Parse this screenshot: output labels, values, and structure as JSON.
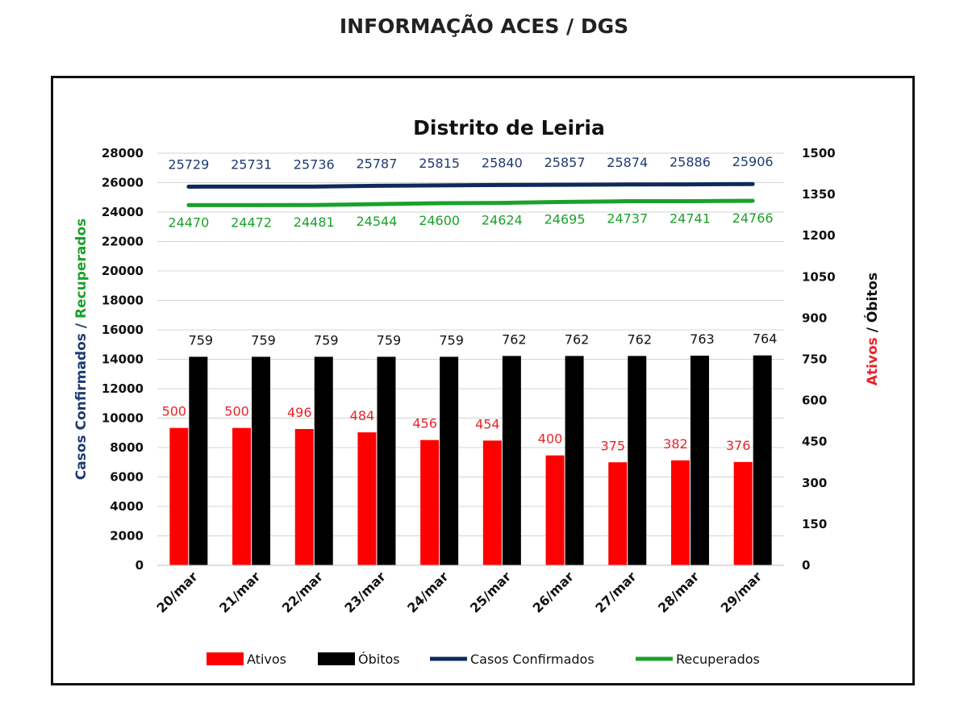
{
  "header": {
    "title": "INFORMAÇÃO ACES / DGS"
  },
  "chart_data": {
    "type": "bar",
    "title": "Distrito de Leiria",
    "categories": [
      "20/mar",
      "21/mar",
      "22/mar",
      "23/mar",
      "24/mar",
      "25/mar",
      "26/mar",
      "27/mar",
      "28/mar",
      "29/mar"
    ],
    "series": [
      {
        "name": "Ativos",
        "type": "bar",
        "axis": "right",
        "color": "#ff0000",
        "label_color": "#e8242a",
        "values": [
          500,
          500,
          496,
          484,
          456,
          454,
          400,
          375,
          382,
          376
        ]
      },
      {
        "name": "Óbitos",
        "type": "bar",
        "axis": "right",
        "color": "#000000",
        "label_color": "#111111",
        "values": [
          759,
          759,
          759,
          759,
          759,
          762,
          762,
          762,
          763,
          764
        ]
      },
      {
        "name": "Casos Confirmados",
        "type": "line",
        "axis": "left",
        "color": "#0e2a5c",
        "label_color": "#1f3b73",
        "values": [
          25729,
          25731,
          25736,
          25787,
          25815,
          25840,
          25857,
          25874,
          25886,
          25906
        ]
      },
      {
        "name": "Recuperados",
        "type": "line",
        "axis": "left",
        "color": "#1ba12a",
        "label_color": "#1ba12a",
        "values": [
          24470,
          24472,
          24481,
          24544,
          24600,
          24624,
          24695,
          24737,
          24741,
          24766
        ]
      }
    ],
    "y_left": {
      "label_parts": [
        {
          "text": "Casos Confirmados / ",
          "color": "#1f3b73"
        },
        {
          "text": "Recuperados",
          "color": "#1ba12a"
        }
      ],
      "ylim": [
        0,
        28000
      ],
      "ticks": [
        "0",
        "2000",
        "4000",
        "6000",
        "8000",
        "10000",
        "12000",
        "14000",
        "16000",
        "18000",
        "20000",
        "22000",
        "24000",
        "26000",
        "28000"
      ]
    },
    "y_right": {
      "label_parts": [
        {
          "text": "Ativos",
          "color": "#e8242a"
        },
        {
          "text": " / Óbitos",
          "color": "#111111"
        }
      ],
      "ylim": [
        0,
        1500
      ],
      "ticks": [
        "0",
        "150",
        "300",
        "450",
        "600",
        "750",
        "900",
        "1050",
        "1200",
        "1350",
        "1500"
      ]
    },
    "grid": true,
    "legend": "bottom",
    "legend_items": [
      {
        "label": "Ativos",
        "marker": "bar",
        "color": "#ff0000"
      },
      {
        "label": "Óbitos",
        "marker": "bar",
        "color": "#000000"
      },
      {
        "label": "Casos Confirmados",
        "marker": "line",
        "color": "#0e2a5c"
      },
      {
        "label": "Recuperados",
        "marker": "line",
        "color": "#1ba12a"
      }
    ]
  }
}
